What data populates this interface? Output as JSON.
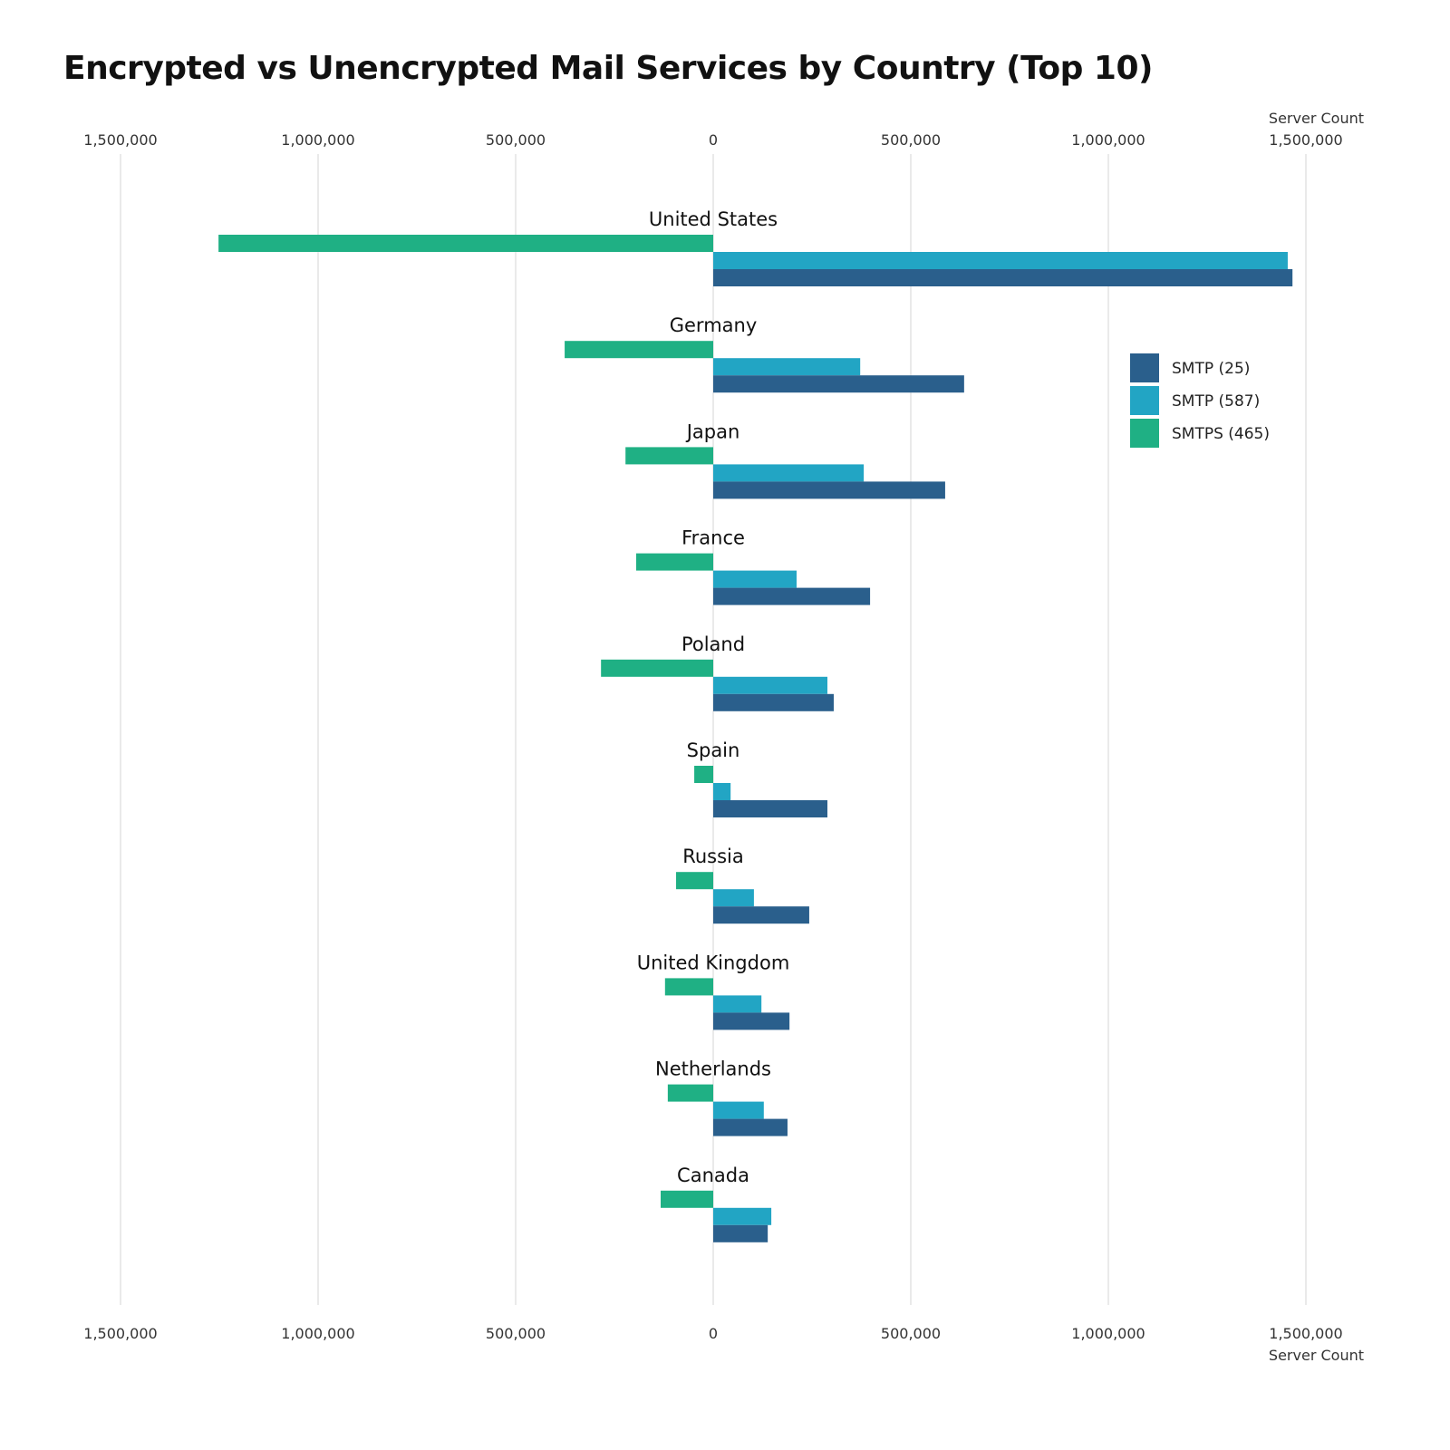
{
  "chart_data": {
    "type": "bar",
    "orientation": "horizontal-diverging",
    "title": "Encrypted vs Unencrypted Mail Services by Country (Top 10)",
    "xlabel": "Server Count",
    "xlim": [
      -1500000,
      1500000
    ],
    "xticks": [
      -1500000,
      -1000000,
      -500000,
      0,
      500000,
      1000000,
      1500000
    ],
    "xtick_labels": [
      "1,500,000",
      "1,000,000",
      "500,000",
      "0",
      "500,000",
      "1,000,000",
      "1,500,000"
    ],
    "grid": true,
    "legend_position": "right",
    "categories": [
      "United States",
      "Germany",
      "Japan",
      "France",
      "Poland",
      "Spain",
      "Russia",
      "United Kingdom",
      "Netherlands",
      "Canada"
    ],
    "series": [
      {
        "name": "SMTP (25)",
        "color": "#2a5f8c",
        "direction": "right",
        "values": [
          1466000,
          635000,
          587000,
          397000,
          305000,
          289000,
          243000,
          193000,
          188000,
          138000
        ]
      },
      {
        "name": "SMTP (587)",
        "color": "#22a5c4",
        "direction": "right",
        "values": [
          1454000,
          372000,
          381000,
          211000,
          289000,
          44000,
          103000,
          122000,
          128000,
          147000
        ]
      },
      {
        "name": "SMTPS (465)",
        "color": "#1fb084",
        "direction": "left",
        "values": [
          1252000,
          376000,
          222000,
          195000,
          284000,
          48000,
          94000,
          122000,
          115000,
          133000
        ]
      }
    ]
  }
}
